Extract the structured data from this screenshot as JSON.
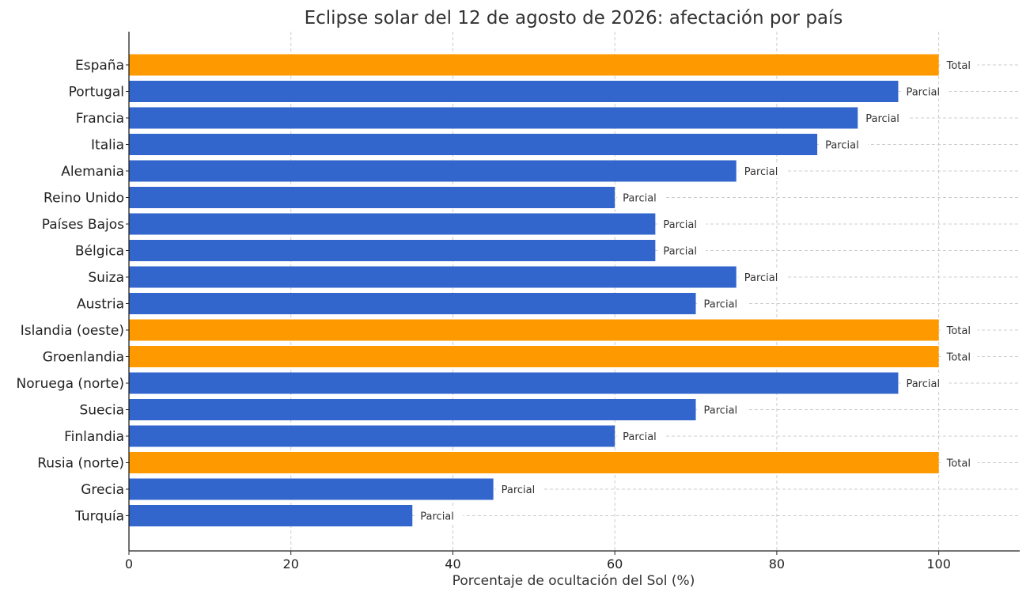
{
  "chart_data": {
    "type": "bar",
    "orientation": "horizontal",
    "title": "Eclipse solar del 12 de agosto de 2026: afectación por país",
    "xlabel": "Porcentaje de ocultación del Sol (%)",
    "ylabel": "",
    "xlim": [
      0,
      110
    ],
    "xticks": [
      0,
      20,
      40,
      60,
      80,
      100
    ],
    "grid": true,
    "colors": {
      "Parcial": "#3366cc",
      "Total": "#ff9900"
    },
    "categories": [
      "Turquía",
      "Grecia",
      "Rusia (norte)",
      "Finlandia",
      "Suecia",
      "Noruega (norte)",
      "Groenlandia",
      "Islandia (oeste)",
      "Austria",
      "Suiza",
      "Bélgica",
      "Países Bajos",
      "Reino Unido",
      "Alemania",
      "Italia",
      "Francia",
      "Portugal",
      "España"
    ],
    "values": [
      35,
      45,
      100,
      60,
      70,
      95,
      100,
      100,
      70,
      75,
      65,
      65,
      60,
      75,
      85,
      90,
      95,
      100
    ],
    "labels": [
      "Parcial",
      "Parcial",
      "Total",
      "Parcial",
      "Parcial",
      "Parcial",
      "Total",
      "Total",
      "Parcial",
      "Parcial",
      "Parcial",
      "Parcial",
      "Parcial",
      "Parcial",
      "Parcial",
      "Parcial",
      "Parcial",
      "Total"
    ]
  }
}
